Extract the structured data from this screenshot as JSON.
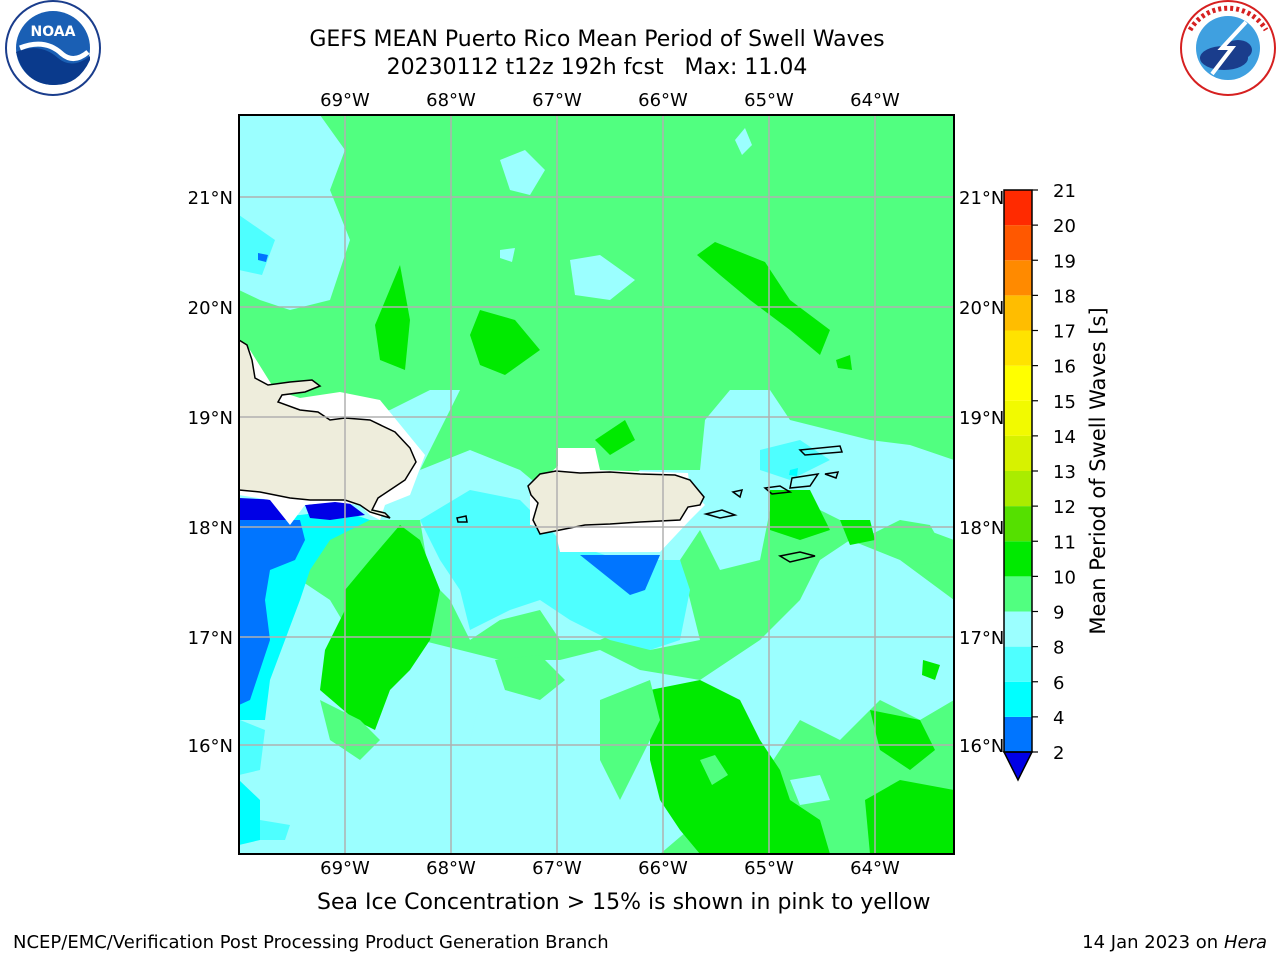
{
  "title": {
    "line1": "GEFS MEAN Puerto Rico Mean Period of Swell Waves",
    "line2": "20230112 t12z 192h fcst   Max: 11.04"
  },
  "caption": "Sea Ice Concentration > 15% is shown in pink to yellow",
  "credit": "NCEP/EMC/Verification Post Processing Product Generation Branch",
  "run_date": "14 Jan 2023 on",
  "run_host": "Hera",
  "logos": {
    "left": {
      "name": "noaa-logo",
      "text": "NOAA"
    },
    "right": {
      "name": "nws-logo",
      "text": "NATIONAL WEATHER SERVICE"
    }
  },
  "map": {
    "region": "Puerto Rico",
    "lon_ticks": [
      "69°W",
      "68°W",
      "67°W",
      "66°W",
      "65°W",
      "64°W"
    ],
    "lat_ticks": [
      "21°N",
      "20°N",
      "19°N",
      "18°N",
      "17°N",
      "16°N"
    ],
    "land_color": "#eeeddc",
    "grid_color": "#b0b0b0"
  },
  "colorbar": {
    "label": "Mean Period of Swell Waves [s]",
    "ticks": [
      "2",
      "4",
      "6",
      "8",
      "9",
      "10",
      "11",
      "12",
      "13",
      "14",
      "15",
      "16",
      "17",
      "18",
      "19",
      "20",
      "21"
    ],
    "colors": [
      "#0075ff",
      "#00ffff",
      "#4effff",
      "#9bffff",
      "#51ff80",
      "#00ea00",
      "#55e000",
      "#aaec00",
      "#d7f200",
      "#f2fa00",
      "#ffff00",
      "#ffe300",
      "#ffbd00",
      "#ff8a00",
      "#ff5800",
      "#ff2a00"
    ],
    "extend_color": "#0000e6"
  },
  "legend_colors": {
    "ocean_base": "#51ff80",
    "green": "#00ea00",
    "light_cyan": "#9bffff",
    "cyan": "#4effff",
    "aqua": "#00ffff",
    "blue": "#0075ff",
    "dark_blue": "#0000e6"
  }
}
